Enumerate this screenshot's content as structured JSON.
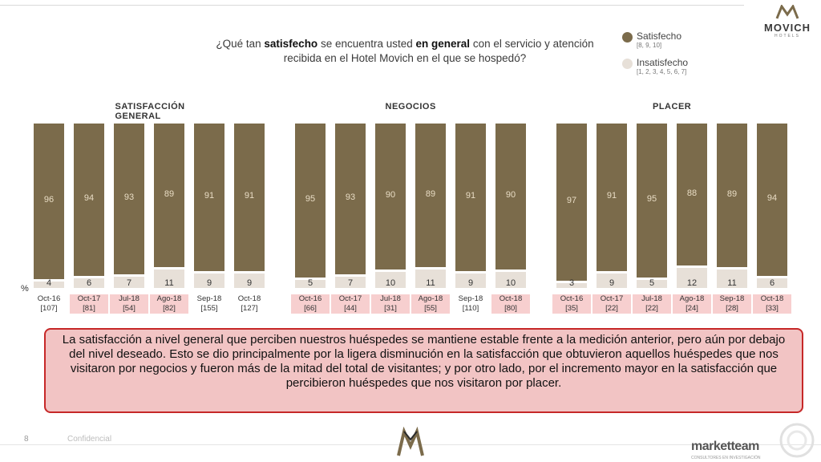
{
  "brand": {
    "name": "MOVICH",
    "sub": "HOTELS"
  },
  "question": {
    "part1": "¿Qué tan ",
    "bold1": "satisfecho",
    "part2": " se encuentra usted ",
    "bold2": "en general",
    "part3": " con el servicio y atención recibida en el Hotel Movich en el que se hospedó?"
  },
  "legend": {
    "satisfied": {
      "label": "Satisfecho",
      "range": "[8, 9, 10]",
      "color": "#7b6b4b"
    },
    "unsatisfied": {
      "label": "Insatisfecho",
      "range": "[1, 2, 3, 4, 5, 6, 7]",
      "color": "#e7e0d8"
    }
  },
  "percent_symbol": "%",
  "chart_data": [
    {
      "type": "bar",
      "stacked": true,
      "title": "SATISFACCIÓN GENERAL",
      "categories": [
        "Oct-16",
        "Oct-17",
        "Jul-18",
        "Ago-18",
        "Sep-18",
        "Oct-18"
      ],
      "sample_sizes": [
        "[107]",
        "[81]",
        "[54]",
        "[82]",
        "[155]",
        "[127]"
      ],
      "highlighted": [
        false,
        true,
        true,
        true,
        false,
        false
      ],
      "series": [
        {
          "name": "Satisfecho",
          "values": [
            96,
            94,
            93,
            89,
            91,
            91
          ]
        },
        {
          "name": "Insatisfecho",
          "values": [
            4,
            6,
            7,
            11,
            9,
            9
          ]
        }
      ],
      "ylim": [
        0,
        100
      ]
    },
    {
      "type": "bar",
      "stacked": true,
      "title": "NEGOCIOS",
      "categories": [
        "Oct-16",
        "Oct-17",
        "Jul-18",
        "Ago-18",
        "Sep-18",
        "Oct-18"
      ],
      "sample_sizes": [
        "[66]",
        "[44]",
        "[31]",
        "[55]",
        "[110]",
        "[80]"
      ],
      "highlighted": [
        true,
        true,
        true,
        true,
        false,
        true
      ],
      "series": [
        {
          "name": "Satisfecho",
          "values": [
            95,
            93,
            90,
            89,
            91,
            90
          ]
        },
        {
          "name": "Insatisfecho",
          "values": [
            5,
            7,
            10,
            11,
            9,
            10
          ]
        }
      ],
      "ylim": [
        0,
        100
      ]
    },
    {
      "type": "bar",
      "stacked": true,
      "title": "PLACER",
      "categories": [
        "Oct-16",
        "Oct-17",
        "Jul-18",
        "Ago-18",
        "Sep-18",
        "Oct-18"
      ],
      "sample_sizes": [
        "[35]",
        "[22]",
        "[22]",
        "[24]",
        "[28]",
        "[33]"
      ],
      "highlighted": [
        true,
        true,
        true,
        true,
        true,
        true
      ],
      "series": [
        {
          "name": "Satisfecho",
          "values": [
            97,
            91,
            95,
            88,
            89,
            94
          ]
        },
        {
          "name": "Insatisfecho",
          "values": [
            3,
            9,
            5,
            12,
            11,
            6
          ]
        }
      ],
      "ylim": [
        0,
        100
      ]
    }
  ],
  "comment": "La satisfacción a nivel general que perciben nuestros huéspedes se mantiene estable frente a la medición anterior, pero aún por debajo del nivel deseado. Esto se dio principalmente por la ligera disminución en la satisfacción que obtuvieron aquellos huéspedes que nos visitaron por negocios y fueron más de la mitad del total de visitantes; y por otro lado, por el incremento mayor en la satisfacción que percibieron huéspedes que nos visitaron por placer.",
  "footer": {
    "page": "8",
    "confidential": "Confidencial",
    "company": "marketteam",
    "company_sub": "CONSULTORES EN INVESTIGACIÓN"
  }
}
